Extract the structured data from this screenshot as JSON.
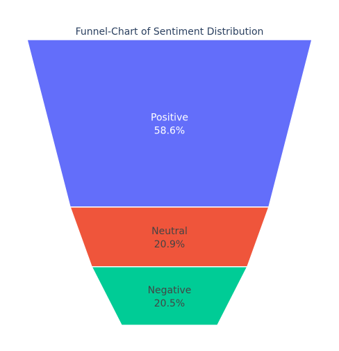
{
  "chart_data": {
    "type": "funnel",
    "title": "Funnel-Chart of Sentiment Distribution",
    "categories": [
      "Positive",
      "Neutral",
      "Negative"
    ],
    "values": [
      58.6,
      20.9,
      20.5
    ],
    "value_labels": [
      "58.6%",
      "20.9%",
      "20.5%"
    ],
    "colors": [
      "#636efa",
      "#ef553b",
      "#00cc96"
    ],
    "label_colors": [
      "#ffffff",
      "#444444",
      "#444444"
    ],
    "legend": "none",
    "grid": false
  }
}
